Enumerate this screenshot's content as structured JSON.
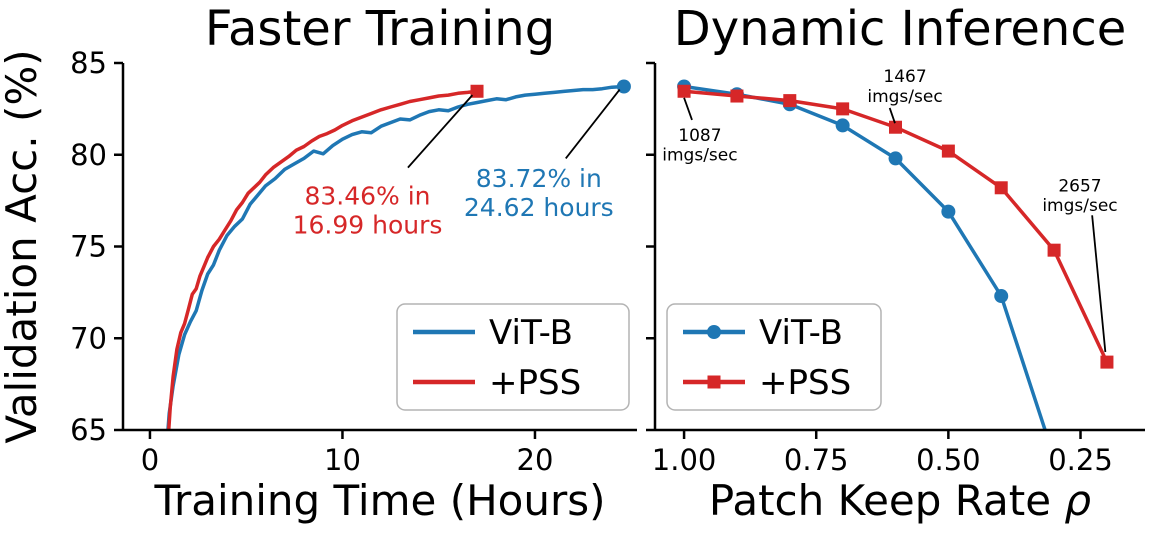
{
  "figure": {
    "background": "#ffffff",
    "shared_ylabel": "Validation Acc. (%)"
  },
  "chart_data": [
    {
      "type": "line",
      "title": "Faster Training",
      "xlabel": "Training Time (Hours)",
      "ylabel": "Validation Acc. (%)",
      "xlim": [
        -1.4,
        25.3
      ],
      "ylim": [
        65,
        85
      ],
      "grid": false,
      "show_ytick_labels": true,
      "xticks": [
        {
          "v": 0,
          "label": "0"
        },
        {
          "v": 10,
          "label": "10"
        },
        {
          "v": 20,
          "label": "20"
        }
      ],
      "yticks": [
        {
          "v": 65,
          "label": "65"
        },
        {
          "v": 70,
          "label": "70"
        },
        {
          "v": 75,
          "label": "75"
        },
        {
          "v": 80,
          "label": "80"
        },
        {
          "v": 85,
          "label": "85"
        }
      ],
      "legend": {
        "position": "lower-right",
        "show_markers": false,
        "entries": [
          "ViT-B",
          "+PSS"
        ]
      },
      "series": [
        {
          "name": "ViT-B",
          "color": "#1f77b4",
          "marker": "circle",
          "marker_mode": "end",
          "points": [
            [
              0.85,
              63.8
            ],
            [
              1.0,
              65.9
            ],
            [
              1.2,
              67.4
            ],
            [
              1.5,
              69.1
            ],
            [
              1.8,
              70.2
            ],
            [
              2.1,
              70.9
            ],
            [
              2.4,
              71.5
            ],
            [
              2.7,
              72.6
            ],
            [
              3.0,
              73.5
            ],
            [
              3.3,
              74.0
            ],
            [
              3.6,
              74.8
            ],
            [
              4.0,
              75.6
            ],
            [
              4.4,
              76.1
            ],
            [
              4.8,
              76.5
            ],
            [
              5.2,
              77.3
            ],
            [
              5.6,
              77.8
            ],
            [
              6.0,
              78.3
            ],
            [
              6.5,
              78.7
            ],
            [
              7.0,
              79.2
            ],
            [
              7.5,
              79.5
            ],
            [
              8.0,
              79.8
            ],
            [
              8.5,
              80.2
            ],
            [
              9.0,
              80.05
            ],
            [
              9.5,
              80.5
            ],
            [
              10.0,
              80.85
            ],
            [
              10.5,
              81.1
            ],
            [
              11.0,
              81.25
            ],
            [
              11.5,
              81.2
            ],
            [
              12.0,
              81.55
            ],
            [
              12.5,
              81.75
            ],
            [
              13.0,
              81.95
            ],
            [
              13.5,
              81.9
            ],
            [
              14.0,
              82.15
            ],
            [
              14.5,
              82.35
            ],
            [
              15.0,
              82.45
            ],
            [
              15.5,
              82.4
            ],
            [
              16.0,
              82.6
            ],
            [
              16.5,
              82.75
            ],
            [
              17.0,
              82.85
            ],
            [
              17.5,
              82.95
            ],
            [
              18.0,
              83.05
            ],
            [
              18.5,
              83.0
            ],
            [
              19.0,
              83.15
            ],
            [
              19.5,
              83.25
            ],
            [
              20.0,
              83.3
            ],
            [
              20.5,
              83.35
            ],
            [
              21.0,
              83.4
            ],
            [
              21.5,
              83.45
            ],
            [
              22.0,
              83.5
            ],
            [
              22.5,
              83.55
            ],
            [
              23.0,
              83.55
            ],
            [
              23.5,
              83.6
            ],
            [
              24.0,
              83.68
            ],
            [
              24.62,
              83.72
            ]
          ]
        },
        {
          "name": "+PSS",
          "color": "#d62728",
          "marker": "square",
          "marker_mode": "end",
          "points": [
            [
              0.9,
              63.8
            ],
            [
              1.05,
              66.2
            ],
            [
              1.2,
              67.9
            ],
            [
              1.4,
              69.4
            ],
            [
              1.6,
              70.3
            ],
            [
              1.8,
              70.8
            ],
            [
              2.0,
              71.6
            ],
            [
              2.2,
              72.4
            ],
            [
              2.4,
              72.7
            ],
            [
              2.6,
              73.4
            ],
            [
              2.8,
              73.9
            ],
            [
              3.0,
              74.4
            ],
            [
              3.3,
              75.0
            ],
            [
              3.6,
              75.4
            ],
            [
              3.9,
              75.9
            ],
            [
              4.2,
              76.4
            ],
            [
              4.5,
              77.0
            ],
            [
              4.8,
              77.4
            ],
            [
              5.1,
              77.9
            ],
            [
              5.4,
              78.2
            ],
            [
              5.7,
              78.5
            ],
            [
              6.0,
              78.9
            ],
            [
              6.4,
              79.3
            ],
            [
              6.8,
              79.6
            ],
            [
              7.2,
              79.9
            ],
            [
              7.6,
              80.25
            ],
            [
              8.0,
              80.45
            ],
            [
              8.4,
              80.75
            ],
            [
              8.8,
              81.0
            ],
            [
              9.2,
              81.15
            ],
            [
              9.6,
              81.35
            ],
            [
              10.0,
              81.6
            ],
            [
              10.5,
              81.85
            ],
            [
              11.0,
              82.05
            ],
            [
              11.5,
              82.25
            ],
            [
              12.0,
              82.45
            ],
            [
              12.5,
              82.6
            ],
            [
              13.0,
              82.75
            ],
            [
              13.5,
              82.9
            ],
            [
              14.0,
              83.0
            ],
            [
              14.5,
              83.1
            ],
            [
              15.0,
              83.2
            ],
            [
              15.5,
              83.25
            ],
            [
              16.0,
              83.35
            ],
            [
              16.5,
              83.4
            ],
            [
              16.99,
              83.46
            ]
          ]
        }
      ],
      "annotations": [
        {
          "lines": [
            "83.46% in",
            "16.99 hours"
          ],
          "color": "#d62728",
          "x": 11.3,
          "y": 77.3,
          "font_size": 25,
          "arrow": {
            "from": [
              13.4,
              79.3
            ],
            "to": [
              16.75,
              83.25
            ]
          }
        },
        {
          "lines": [
            "83.72% in",
            "24.62 hours"
          ],
          "color": "#1f77b4",
          "x": 20.2,
          "y": 78.25,
          "font_size": 25,
          "arrow": {
            "from": [
              21.6,
              79.8
            ],
            "to": [
              24.4,
              83.55
            ]
          }
        }
      ]
    },
    {
      "type": "line",
      "title": "Dynamic Inference",
      "xlabel": "Patch Keep Rate ρ",
      "ylabel": "",
      "xlim": [
        1.055,
        0.128
      ],
      "ylim": [
        65,
        85
      ],
      "grid": false,
      "show_ytick_labels": false,
      "xticks": [
        {
          "v": 1.0,
          "label": "1.00"
        },
        {
          "v": 0.75,
          "label": "0.75"
        },
        {
          "v": 0.5,
          "label": "0.50"
        },
        {
          "v": 0.25,
          "label": "0.25"
        }
      ],
      "yticks": [
        {
          "v": 65,
          "label": "65"
        },
        {
          "v": 70,
          "label": "70"
        },
        {
          "v": 75,
          "label": "75"
        },
        {
          "v": 80,
          "label": "80"
        },
        {
          "v": 85,
          "label": "85"
        }
      ],
      "legend": {
        "position": "lower-left",
        "show_markers": true,
        "entries": [
          "ViT-B",
          "+PSS"
        ]
      },
      "series": [
        {
          "name": "ViT-B",
          "color": "#1f77b4",
          "marker": "circle",
          "marker_mode": "all",
          "points": [
            [
              1.0,
              83.72
            ],
            [
              0.9,
              83.3
            ],
            [
              0.8,
              82.75
            ],
            [
              0.7,
              81.6
            ],
            [
              0.6,
              79.8
            ],
            [
              0.5,
              76.9
            ],
            [
              0.4,
              72.3
            ],
            [
              0.3,
              63.5
            ]
          ]
        },
        {
          "name": "+PSS",
          "color": "#d62728",
          "marker": "square",
          "marker_mode": "all",
          "points": [
            [
              1.0,
              83.46
            ],
            [
              0.9,
              83.2
            ],
            [
              0.8,
              82.95
            ],
            [
              0.7,
              82.5
            ],
            [
              0.6,
              81.5
            ],
            [
              0.5,
              80.2
            ],
            [
              0.4,
              78.2
            ],
            [
              0.3,
              74.8
            ],
            [
              0.2,
              68.7
            ]
          ]
        }
      ],
      "annotations": [
        {
          "lines": [
            "1087",
            "imgs/sec"
          ],
          "color": "#000000",
          "x": 0.97,
          "y": 80.75,
          "font_size": 17,
          "arrow": {
            "from": [
              0.985,
              81.9
            ],
            "to": [
              1.0,
              83.1
            ]
          }
        },
        {
          "lines": [
            "1467",
            "imgs/sec"
          ],
          "color": "#000000",
          "x": 0.582,
          "y": 83.96,
          "font_size": 17,
          "arrow": {
            "from": [
              0.611,
              82.55
            ],
            "to": [
              0.601,
              81.72
            ]
          }
        },
        {
          "lines": [
            "2657",
            "imgs/sec"
          ],
          "color": "#000000",
          "x": 0.251,
          "y": 78.0,
          "font_size": 17,
          "arrow": {
            "from": [
              0.228,
              76.7
            ],
            "to": [
              0.203,
              69.25
            ]
          }
        }
      ]
    }
  ]
}
